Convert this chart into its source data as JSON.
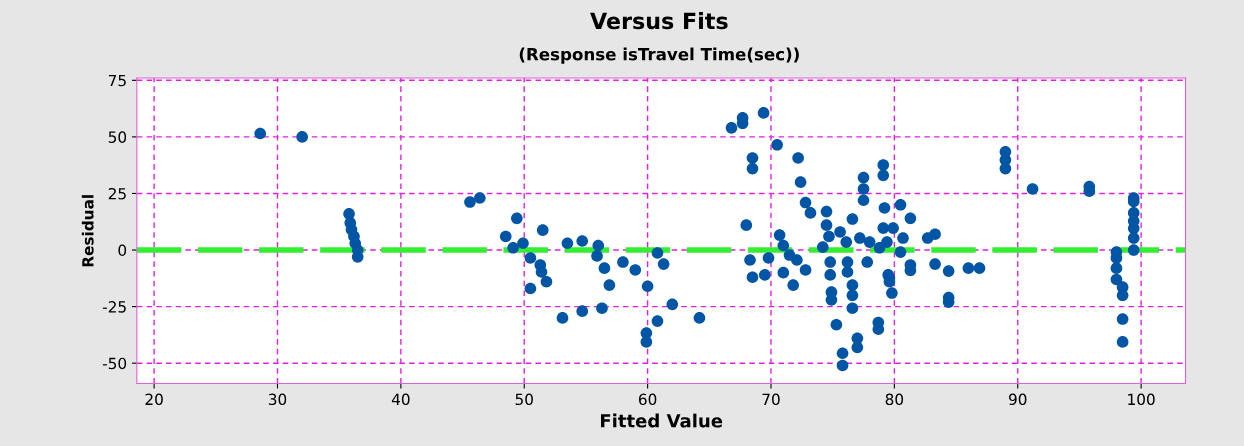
{
  "chart_data": {
    "type": "scatter",
    "title": "Versus Fits",
    "subtitle": "(Response isTravel Time(sec))",
    "xlabel": "Fitted Value",
    "ylabel": "Residual",
    "xlim": [
      18.6,
      103.6
    ],
    "ylim": [
      -59,
      76
    ],
    "xticks": [
      20,
      30,
      40,
      50,
      60,
      70,
      80,
      90,
      100
    ],
    "yticks": [
      -50,
      -25,
      0,
      25,
      50,
      75
    ],
    "grid": true,
    "marker": "circle",
    "legend": false,
    "ref_lines": [
      {
        "axis": "y",
        "value": 0,
        "color": "#33ee33",
        "line_style": "dashed"
      }
    ],
    "series": [
      {
        "color": "#0055a5",
        "x": [
          28.6,
          32,
          35.8,
          35.9,
          36,
          36.2,
          36.3,
          36.5,
          36.5,
          45.6,
          46.4,
          49.4,
          48.5,
          49.1,
          49.9,
          50.5,
          51.3,
          51.4,
          51.8,
          50.5,
          51.5,
          53.5,
          54.7,
          53.1,
          54.7,
          56,
          55.9,
          56.5,
          56.9,
          56.3,
          58,
          59,
          60,
          59.9,
          59.9,
          60.8,
          62,
          60.8,
          61.3,
          64.2,
          66.8,
          67.7,
          67.7,
          69.4,
          68.5,
          68.5,
          70.5,
          72.2,
          72.4,
          72.8,
          73.2,
          68,
          68.3,
          68.5,
          69.5,
          69.8,
          70.7,
          71,
          71.5,
          72.1,
          72.8,
          71,
          71.8,
          74.5,
          74.5,
          74.7,
          74.2,
          74.8,
          74.8,
          74.9,
          74.9,
          75.3,
          75.8,
          75.8,
          75.6,
          76.1,
          76.6,
          76.2,
          76.2,
          76.6,
          76.6,
          76.6,
          77,
          77,
          77.5,
          77.5,
          77.5,
          77.2,
          78,
          77.8,
          78.7,
          78.7,
          79.1,
          79.1,
          79.2,
          79.1,
          79.4,
          79.6,
          79.8,
          80.5,
          81.3,
          79.9,
          80.7,
          80.5,
          79.5,
          79.6,
          81.3,
          81.3,
          78.8,
          82.7,
          83.3,
          83.3,
          84.4,
          84.4,
          84.4,
          86,
          86.9,
          89,
          89,
          89,
          91.2,
          95.8,
          95.8,
          99.4,
          99.4,
          99.4,
          99.4,
          99.4,
          99.4,
          99.4,
          98,
          98,
          98,
          98,
          98.5,
          98.5,
          98.5,
          98.5
        ],
        "values": [
          51.5,
          50,
          16,
          12,
          9,
          6,
          3,
          0,
          -3,
          21.2,
          23,
          14,
          6,
          1,
          3,
          -3.5,
          -6.6,
          -9.7,
          -14,
          -17,
          8.8,
          3,
          4,
          -30,
          -27,
          2,
          -2.6,
          -8,
          -15.5,
          -25.7,
          -5.3,
          -8.8,
          -16,
          -36.7,
          -40.6,
          -31.4,
          -24,
          -1.3,
          -6.2,
          -30,
          54,
          58.4,
          56,
          60.6,
          40.7,
          36,
          46.5,
          40.7,
          30,
          21,
          16.4,
          11,
          -4.4,
          -12,
          -11,
          -3.5,
          6.6,
          2,
          -2.2,
          -4.4,
          -8.8,
          -10,
          -15.5,
          17,
          11,
          6,
          1.3,
          -5.3,
          -11,
          -18.6,
          -22,
          -33,
          -45.6,
          -51,
          8,
          3.5,
          13.7,
          -5.3,
          -9.7,
          -15.5,
          -20,
          -25.7,
          -39,
          -43,
          32,
          27,
          22,
          5.3,
          3.5,
          -5.3,
          -32,
          -35,
          37.6,
          33,
          18.6,
          9.7,
          3.5,
          -12.4,
          -19,
          20,
          14,
          9.7,
          5.3,
          -0.9,
          -11,
          -14,
          -6.6,
          -9,
          1,
          5.3,
          7,
          -6.2,
          -9.3,
          -21,
          -23,
          -8,
          -8,
          43.4,
          39.8,
          36,
          27,
          28,
          26,
          23,
          21.5,
          16.4,
          12.8,
          9.6,
          5.3,
          0,
          -0.9,
          -3.5,
          -8,
          -13,
          -16.4,
          -20,
          -30.5,
          -40.6
        ]
      }
    ]
  }
}
